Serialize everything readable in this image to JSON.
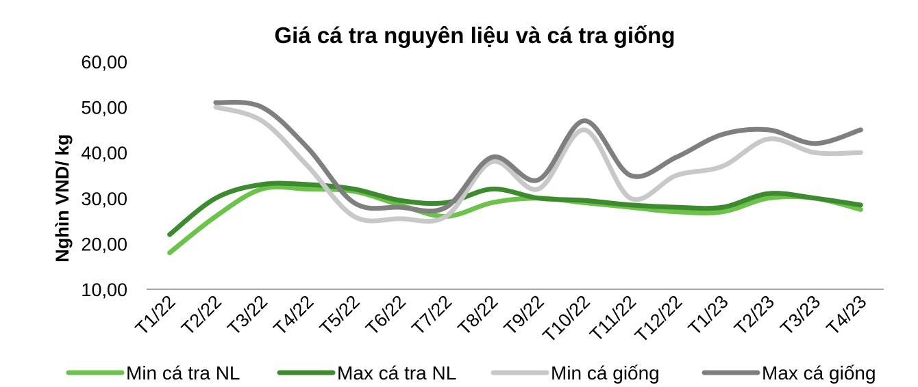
{
  "chart_data": {
    "type": "line",
    "title": "Giá cá tra nguyên liệu và cá tra giống",
    "xlabel": "",
    "ylabel": "Nghìn VND/ kg",
    "ylim": [
      10,
      60
    ],
    "yticks": [
      "10,00",
      "20,00",
      "30,00",
      "40,00",
      "50,00",
      "60,00"
    ],
    "categories": [
      "T1/22",
      "T2/22",
      "T3/22",
      "T4/22",
      "T5/22",
      "T6/22",
      "T7/22",
      "T8/22",
      "T9/22",
      "T10/22",
      "T11/22",
      "T12/22",
      "T1/23",
      "T2/23",
      "T3/23",
      "T4/23"
    ],
    "grid": false,
    "legend_position": "bottom",
    "series": [
      {
        "name": "Min cá tra NL",
        "color": "#6cc24a",
        "values": [
          18,
          26,
          32,
          32,
          31.5,
          28.5,
          26,
          29,
          30,
          29,
          28,
          27,
          27,
          30,
          30,
          27.5
        ]
      },
      {
        "name": "Max cá tra NL",
        "color": "#3e8a2e",
        "values": [
          22,
          30,
          33,
          33,
          32,
          29.5,
          29,
          32,
          30,
          29.5,
          28.5,
          28,
          28,
          31,
          30,
          28.5
        ]
      },
      {
        "name": "Min cá giống",
        "color": "#c8c8c8",
        "values": [
          null,
          50,
          47,
          37,
          26,
          25.5,
          26,
          38,
          32,
          45,
          30,
          35,
          37,
          43,
          40,
          40
        ]
      },
      {
        "name": "Max cá giống",
        "color": "#7f7f7f",
        "values": [
          null,
          51,
          50,
          41,
          29,
          28,
          28,
          39,
          34,
          47,
          35,
          39,
          44,
          45,
          42,
          45
        ]
      }
    ]
  }
}
